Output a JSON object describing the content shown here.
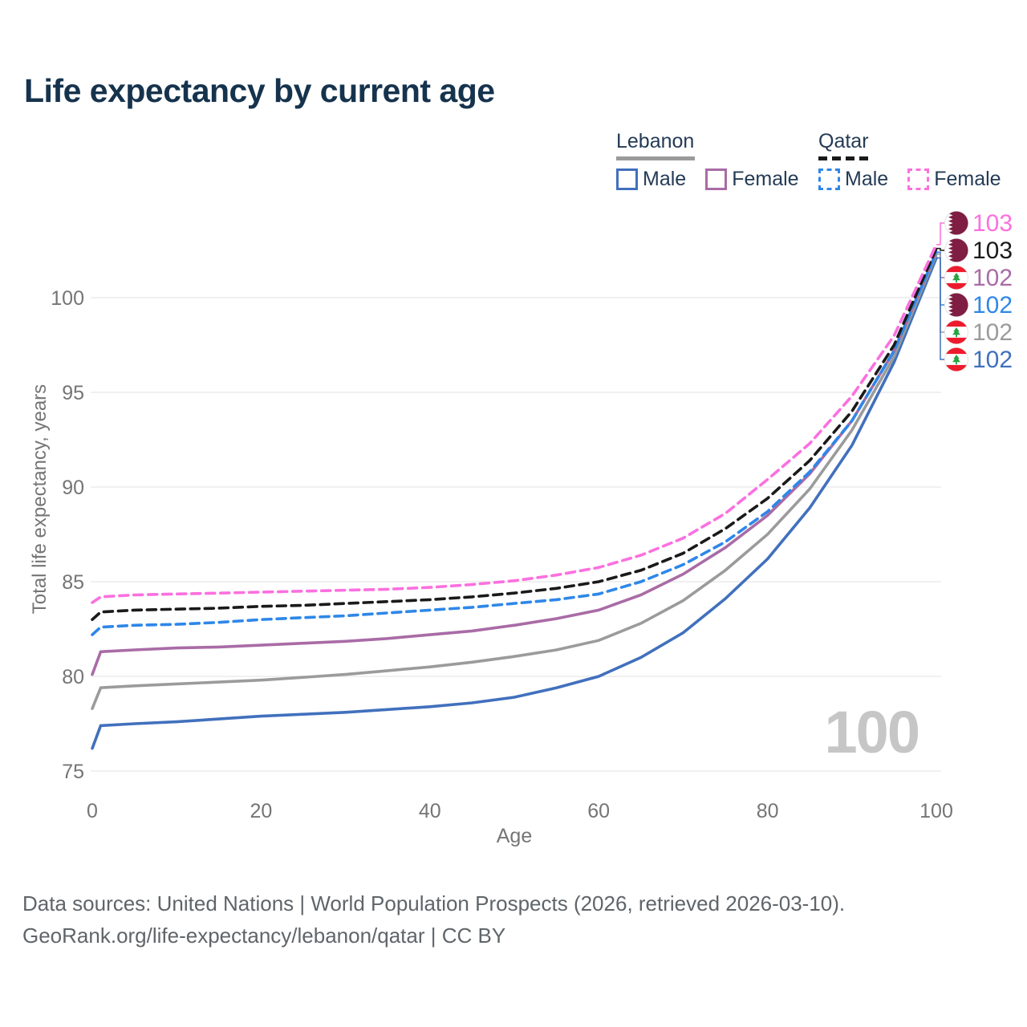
{
  "title": "Life expectancy by current age",
  "watermark": "100",
  "legend": {
    "position": "top-right",
    "groups": [
      {
        "name": "Lebanon",
        "line_style": "solid",
        "underline_color": "#9b9b9b",
        "items": [
          {
            "label": "Male",
            "color": "#4170bd"
          },
          {
            "label": "Female",
            "color": "#a96ba6"
          }
        ]
      },
      {
        "name": "Qatar",
        "line_style": "dashed",
        "underline_color": "#1a1a1a",
        "items": [
          {
            "label": "Male",
            "color": "#2e87e8"
          },
          {
            "label": "Female",
            "color": "#fb70df"
          }
        ]
      }
    ]
  },
  "footer": {
    "line1": "Data sources: United Nations | World Population Prospects (2026, retrieved 2026-03-10).",
    "line2": "GeoRank.org/life-expectancy/lebanon/qatar | CC BY"
  },
  "chart_data": {
    "type": "line",
    "title": "Life expectancy by current age",
    "xlabel": "Age",
    "ylabel": "Total life expectancy, years",
    "xlim": [
      0,
      100
    ],
    "ylim": [
      75,
      103
    ],
    "xticks": [
      0,
      20,
      40,
      60,
      80,
      100
    ],
    "yticks": [
      75,
      80,
      85,
      90,
      95,
      100
    ],
    "grid": "horizontal",
    "grid_color": "#ececec",
    "tick_color": "#757575",
    "x": [
      0,
      1,
      5,
      10,
      15,
      20,
      25,
      30,
      35,
      40,
      45,
      50,
      55,
      60,
      65,
      70,
      75,
      80,
      85,
      90,
      95,
      100
    ],
    "series": [
      {
        "name": "Lebanon Male",
        "country": "Lebanon",
        "sex": "Male",
        "flag": "lebanon",
        "color": "#4170bd",
        "dash": "solid",
        "end_label": "102",
        "label_row": 5,
        "values": [
          76.2,
          77.4,
          77.5,
          77.6,
          77.75,
          77.9,
          78.0,
          78.1,
          78.25,
          78.4,
          78.6,
          78.9,
          79.4,
          80.0,
          81.0,
          82.3,
          84.1,
          86.2,
          88.9,
          92.2,
          96.6,
          102.1
        ]
      },
      {
        "name": "Lebanon Total",
        "country": "Lebanon",
        "sex": "Both",
        "flag": "lebanon",
        "color": "#9b9b9b",
        "dash": "solid",
        "end_label": "102",
        "label_row": 4,
        "values": [
          78.3,
          79.4,
          79.5,
          79.6,
          79.7,
          79.8,
          79.95,
          80.1,
          80.3,
          80.5,
          80.75,
          81.05,
          81.4,
          81.9,
          82.8,
          84.0,
          85.6,
          87.5,
          89.9,
          93.0,
          96.9,
          102.3
        ]
      },
      {
        "name": "Lebanon Female",
        "country": "Lebanon",
        "sex": "Female",
        "flag": "lebanon",
        "color": "#a96ba6",
        "dash": "solid",
        "end_label": "102",
        "label_row": 2,
        "values": [
          80.1,
          81.3,
          81.4,
          81.5,
          81.55,
          81.65,
          81.75,
          81.85,
          82.0,
          82.2,
          82.4,
          82.7,
          83.05,
          83.5,
          84.3,
          85.4,
          86.8,
          88.5,
          90.7,
          93.5,
          97.2,
          102.4
        ]
      },
      {
        "name": "Qatar Male",
        "country": "Qatar",
        "sex": "Male",
        "flag": "qatar",
        "color": "#2e87e8",
        "dash": "dashed",
        "end_label": "102",
        "label_row": 3,
        "values": [
          82.2,
          82.6,
          82.7,
          82.75,
          82.85,
          83.0,
          83.1,
          83.2,
          83.35,
          83.5,
          83.65,
          83.85,
          84.05,
          84.35,
          85.0,
          85.9,
          87.1,
          88.7,
          90.8,
          93.5,
          97.2,
          102.4
        ]
      },
      {
        "name": "Qatar Total",
        "country": "Qatar",
        "sex": "Both",
        "flag": "qatar",
        "color": "#1a1a1a",
        "dash": "dashed",
        "end_label": "103",
        "label_row": 1,
        "values": [
          83.0,
          83.4,
          83.5,
          83.55,
          83.6,
          83.7,
          83.75,
          83.85,
          83.95,
          84.05,
          84.2,
          84.4,
          84.65,
          85.0,
          85.6,
          86.5,
          87.8,
          89.4,
          91.4,
          94.0,
          97.5,
          102.6
        ]
      },
      {
        "name": "Qatar Female",
        "country": "Qatar",
        "sex": "Female",
        "flag": "qatar",
        "color": "#fb70df",
        "dash": "dashed",
        "end_label": "103",
        "label_row": 0,
        "values": [
          83.9,
          84.2,
          84.3,
          84.35,
          84.4,
          84.45,
          84.5,
          84.55,
          84.6,
          84.7,
          84.85,
          85.05,
          85.35,
          85.75,
          86.4,
          87.3,
          88.6,
          90.4,
          92.3,
          94.8,
          98.0,
          102.8
        ]
      }
    ],
    "flag_colors": {
      "qatar_maroon": "#7f1d42",
      "lebanon_red": "#ed1b2d",
      "cedar_green": "#27a343"
    }
  }
}
